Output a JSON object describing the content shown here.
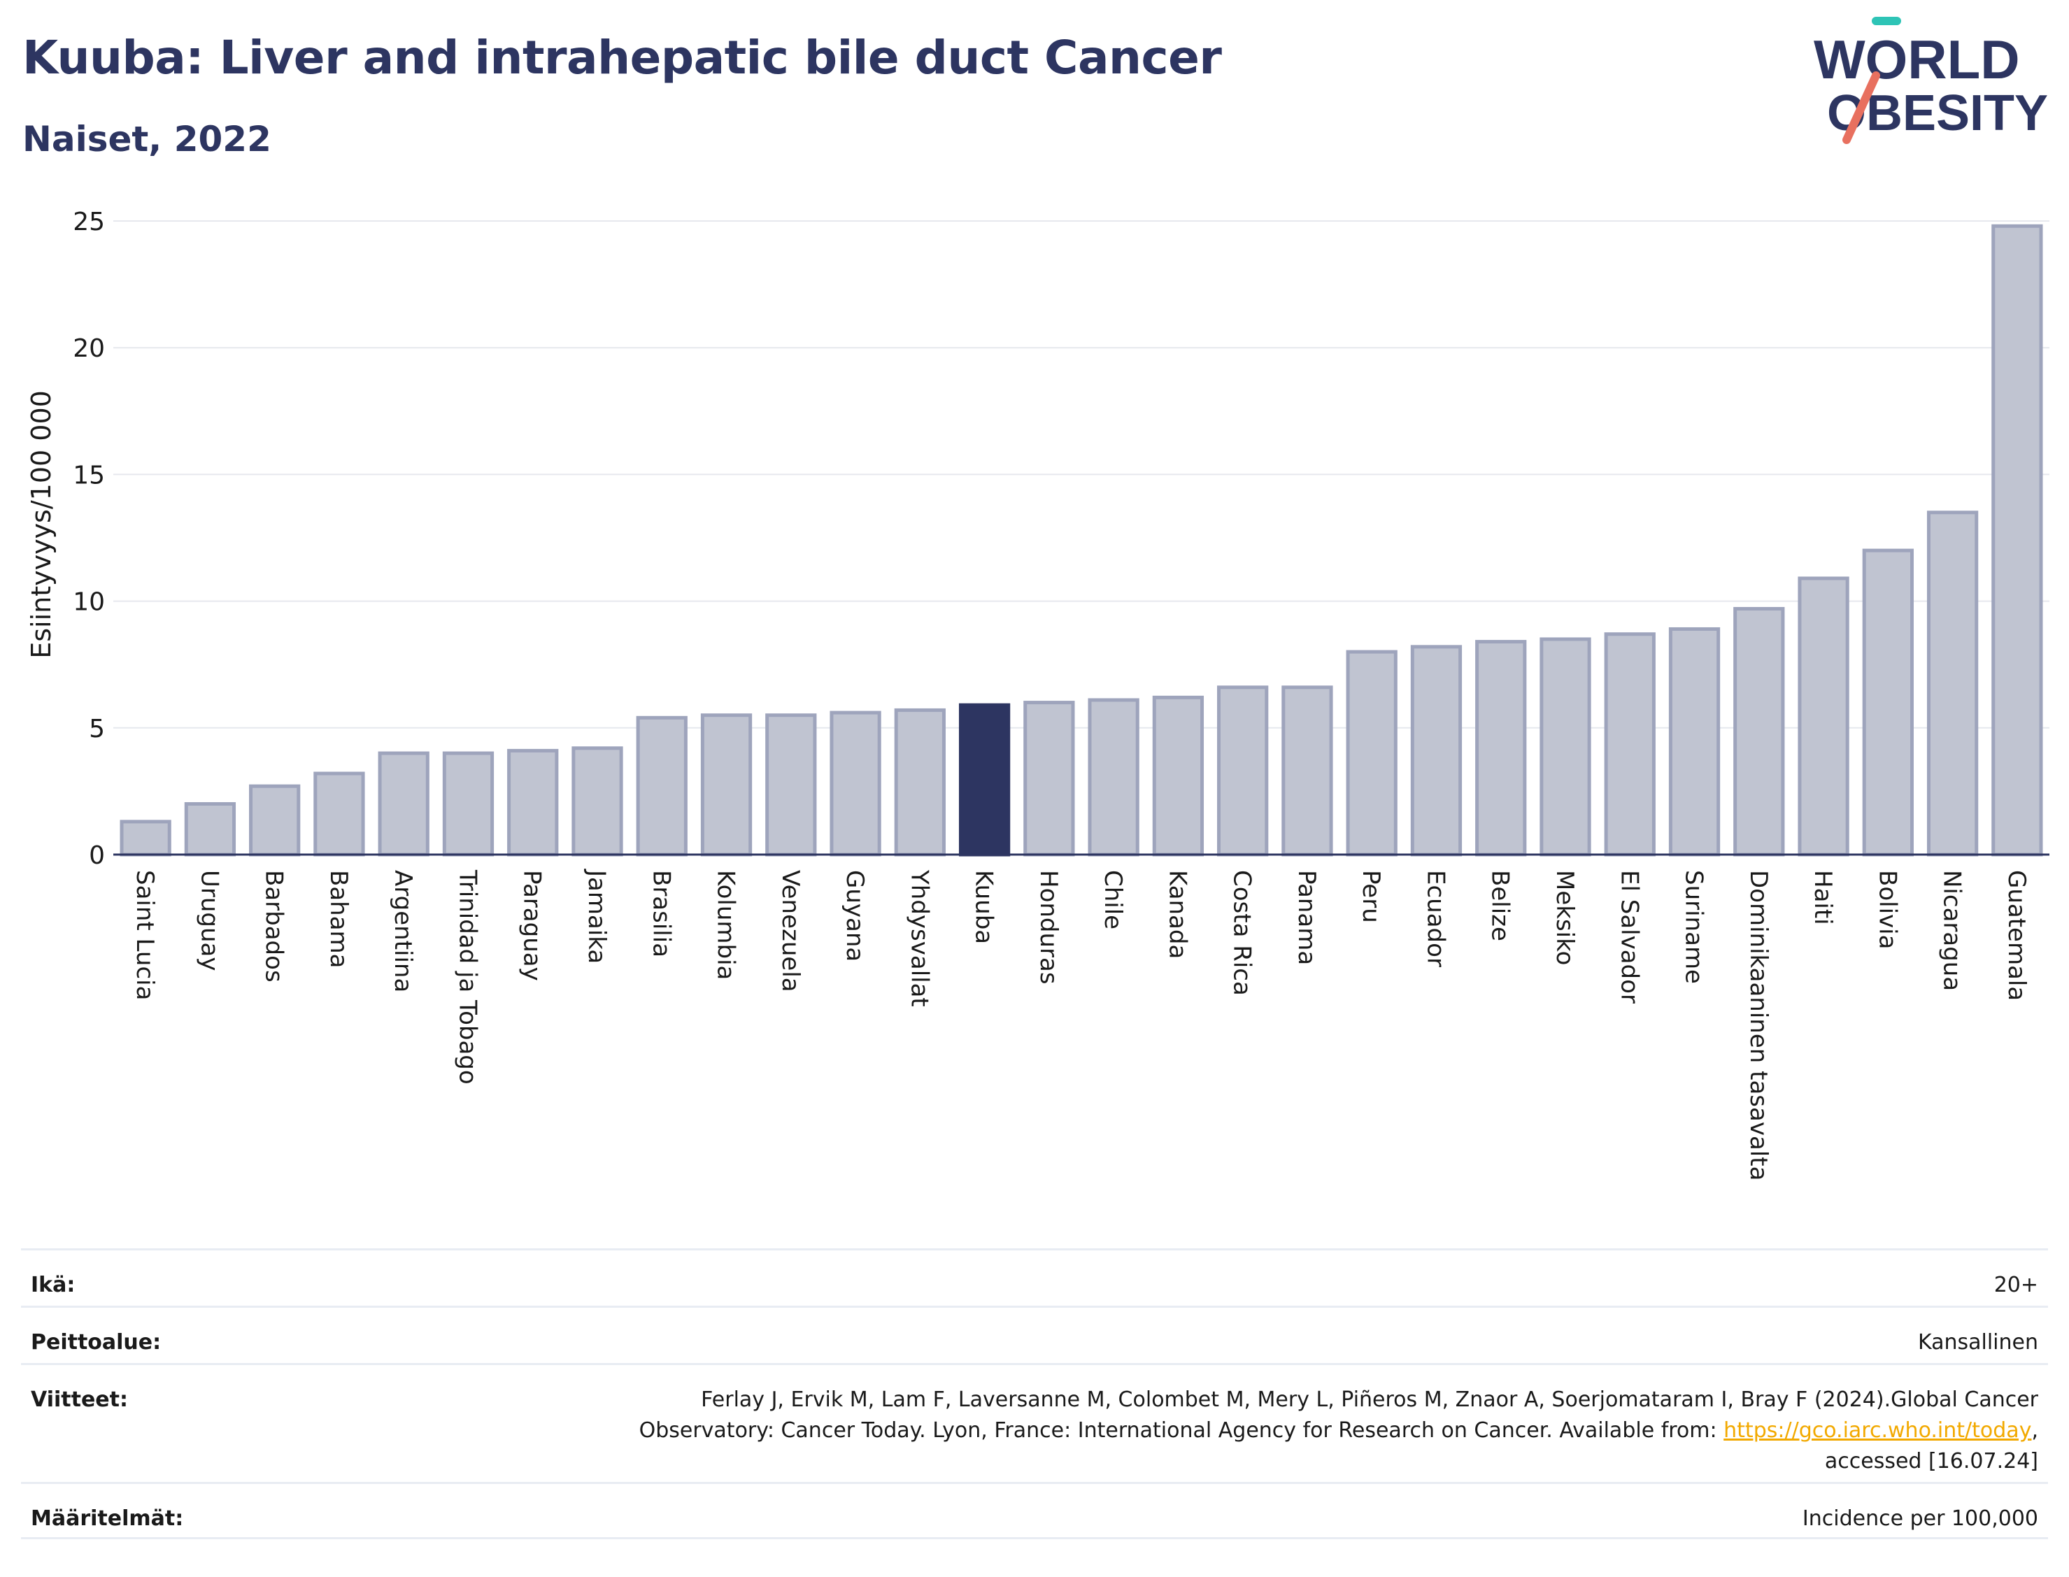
{
  "header": {
    "title": "Kuuba: Liver and intrahepatic bile duct Cancer",
    "subtitle": "Naiset, 2022"
  },
  "logo": {
    "line1": "WORLD",
    "line2": "OBESITY",
    "text_color": "#2d3561",
    "accent_teal": "#2ec4b6",
    "accent_coral": "#e8705f"
  },
  "colors": {
    "bar": "#c0c4d1",
    "bar_stroke": "#9ea4bc",
    "highlight": "#2d3561",
    "grid": "#e6e8ee",
    "axis": "#2d3561"
  },
  "chart_data": {
    "type": "bar",
    "ylabel": "Esiintyvyys/100 000",
    "ylim": [
      0,
      25
    ],
    "yticks": [
      0,
      5,
      10,
      15,
      20,
      25
    ],
    "grid": true,
    "highlight_category": "Kuuba",
    "categories": [
      "Saint Lucia",
      "Uruguay",
      "Barbados",
      "Bahama",
      "Argentiina",
      "Trinidad ja Tobago",
      "Paraguay",
      "Jamaika",
      "Brasilia",
      "Kolumbia",
      "Venezuela",
      "Guyana",
      "Yhdysvallat",
      "Kuuba",
      "Honduras",
      "Chile",
      "Kanada",
      "Costa Rica",
      "Panama",
      "Peru",
      "Ecuador",
      "Belize",
      "Meksiko",
      "El Salvador",
      "Suriname",
      "Dominikaaninen tasavalta",
      "Haiti",
      "Bolivia",
      "Nicaragua",
      "Guatemala"
    ],
    "values": [
      1.3,
      2.0,
      2.7,
      3.2,
      4.0,
      4.0,
      4.1,
      4.2,
      5.4,
      5.5,
      5.5,
      5.6,
      5.7,
      5.9,
      6.0,
      6.1,
      6.2,
      6.6,
      6.6,
      8.0,
      8.2,
      8.4,
      8.5,
      8.7,
      8.9,
      9.7,
      10.9,
      12.0,
      13.5,
      24.8
    ]
  },
  "meta": {
    "age": {
      "label": "Ikä:",
      "value": "20+"
    },
    "coverage": {
      "label": "Peittoalue:",
      "value": "Kansallinen"
    },
    "references": {
      "label": "Viitteet:",
      "line1": "Ferlay J, Ervik M, Lam F, Laversanne M, Colombet M, Mery L, Piñeros M, Znaor A, Soerjomataram I, Bray F (2024).Global Cancer",
      "line2_prefix": "Observatory: Cancer Today. Lyon, France: International Agency for Research on Cancer. Available from: ",
      "link": "https://gco.iarc.who.int/today",
      "line2_suffix": ",",
      "line3": "accessed [16.07.24]"
    },
    "definitions": {
      "label": "Määritelmät:",
      "value": "Incidence per 100,000"
    }
  }
}
